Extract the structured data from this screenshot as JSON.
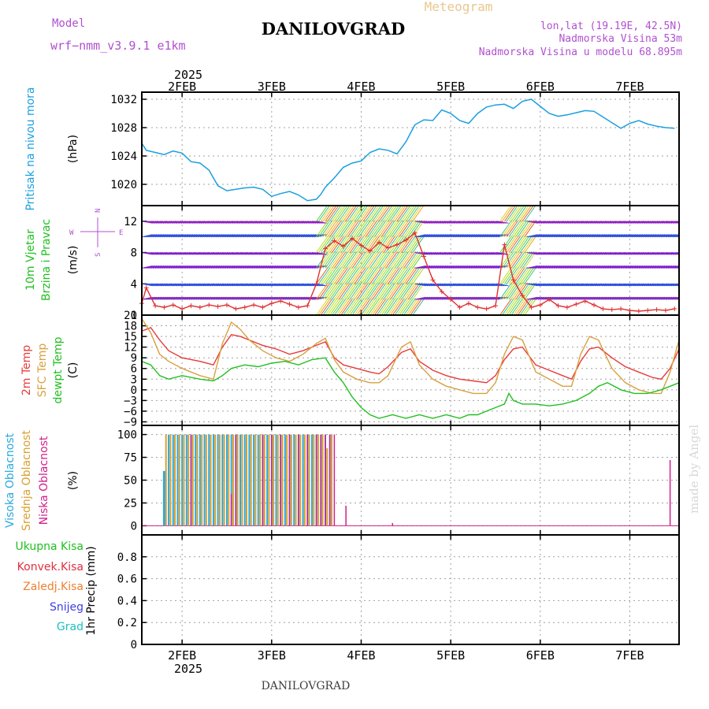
{
  "header": {
    "meteogram_label": "Meteogram",
    "model_label": "Model",
    "model_name": "wrf−nmm_v3.9.1 e1km",
    "city": "DANILOVGRAD",
    "coords": "lon,lat (19.19E, 42.5N)",
    "elevation": "Nadmorska Visina 53m",
    "model_elevation": "Nadmorska Visina u modelu 68.895m",
    "year": "2025",
    "footer_city": "DANILOVGRAD",
    "credit": "made by Angel"
  },
  "colors": {
    "pressure": "#1a9fe0",
    "wind_speed": "#e03030",
    "temp_2m": "#e83a3a",
    "temp_sfc": "#d8a040",
    "dewpoint": "#20c020",
    "cloud_high": "#2aa8e0",
    "cloud_mid": "#d8a030",
    "cloud_low": "#d0208a",
    "meta": "#b050d0",
    "frame": "#000000",
    "grid": "#a0a0a0"
  },
  "time_axis": {
    "ticks": [
      "2FEB",
      "3FEB",
      "4FEB",
      "5FEB",
      "6FEB",
      "7FEB"
    ],
    "tick_days": [
      2,
      3,
      4,
      5,
      6,
      7
    ],
    "xlim_days": [
      1.55,
      7.55
    ],
    "year_label": "2025"
  },
  "chart_data": [
    {
      "type": "line",
      "panel": "pressure",
      "ylabel_1": "Pritisak na nivou mora",
      "ylabel_2": "(hPa)",
      "ylim": [
        1017,
        1033
      ],
      "yticks": [
        1020,
        1024,
        1028,
        1032
      ],
      "series": [
        {
          "name": "Pritisak na nivou mora",
          "x": [
            1.55,
            1.6,
            1.7,
            1.8,
            1.9,
            2.0,
            2.1,
            2.2,
            2.3,
            2.4,
            2.5,
            2.6,
            2.7,
            2.8,
            2.9,
            3.0,
            3.1,
            3.2,
            3.3,
            3.4,
            3.5,
            3.55,
            3.6,
            3.7,
            3.8,
            3.9,
            4.0,
            4.1,
            4.2,
            4.3,
            4.4,
            4.5,
            4.6,
            4.7,
            4.8,
            4.9,
            5.0,
            5.1,
            5.2,
            5.3,
            5.4,
            5.5,
            5.6,
            5.7,
            5.8,
            5.9,
            6.0,
            6.1,
            6.2,
            6.3,
            6.4,
            6.5,
            6.6,
            6.7,
            6.8,
            6.9,
            7.0,
            7.1,
            7.2,
            7.3,
            7.4,
            7.5
          ],
          "values": [
            1025.8,
            1024.8,
            1024.5,
            1024.2,
            1024.7,
            1024.4,
            1023.2,
            1023.0,
            1022.0,
            1019.8,
            1019.1,
            1019.3,
            1019.5,
            1019.6,
            1019.3,
            1018.3,
            1018.7,
            1019.0,
            1018.5,
            1017.7,
            1017.9,
            1018.6,
            1019.6,
            1020.9,
            1022.4,
            1023.0,
            1023.3,
            1024.5,
            1025.0,
            1024.8,
            1024.3,
            1026.0,
            1028.4,
            1029.1,
            1029.0,
            1030.5,
            1030.0,
            1029.0,
            1028.6,
            1030.0,
            1030.9,
            1031.2,
            1031.3,
            1030.7,
            1031.7,
            1032.0,
            1031.0,
            1030.0,
            1029.6,
            1029.8,
            1030.1,
            1030.4,
            1030.3,
            1029.5,
            1028.7,
            1027.9,
            1028.6,
            1029.0,
            1028.5,
            1028.2,
            1028.0,
            1027.9
          ]
        }
      ]
    },
    {
      "type": "line",
      "panel": "wind",
      "ylabel_1": "10m Vjetar",
      "ylabel_2": "Brzina i Pravac",
      "ylabel_3": "(m/s)",
      "compass": {
        "n": "N",
        "s": "S",
        "w": "W",
        "e": "E"
      },
      "ylim": [
        0,
        14
      ],
      "yticks": [
        0,
        4,
        8,
        12
      ],
      "series": [
        {
          "name": "10m Vjetar Brzina",
          "x": [
            1.55,
            1.6,
            1.7,
            1.8,
            1.9,
            2.0,
            2.1,
            2.2,
            2.3,
            2.4,
            2.5,
            2.6,
            2.7,
            2.8,
            2.9,
            3.0,
            3.1,
            3.2,
            3.3,
            3.4,
            3.5,
            3.6,
            3.7,
            3.8,
            3.9,
            4.0,
            4.1,
            4.2,
            4.3,
            4.4,
            4.5,
            4.6,
            4.7,
            4.8,
            4.9,
            5.0,
            5.1,
            5.2,
            5.3,
            5.4,
            5.5,
            5.6,
            5.7,
            5.8,
            5.9,
            6.0,
            6.1,
            6.2,
            6.3,
            6.4,
            6.5,
            6.6,
            6.7,
            6.8,
            6.9,
            7.0,
            7.1,
            7.2,
            7.3,
            7.4,
            7.5
          ],
          "values": [
            1.5,
            3.5,
            1.2,
            1.0,
            1.3,
            0.8,
            1.2,
            1.0,
            1.3,
            1.1,
            1.3,
            0.8,
            1.0,
            1.3,
            1.0,
            1.5,
            1.8,
            1.4,
            1.0,
            1.2,
            4.0,
            8.5,
            9.5,
            8.8,
            9.8,
            8.9,
            8.2,
            9.3,
            8.6,
            9.0,
            9.6,
            10.5,
            7.5,
            4.5,
            3.0,
            2.0,
            1.0,
            1.5,
            1.0,
            0.8,
            1.2,
            9.0,
            4.5,
            2.5,
            1.0,
            1.3,
            2.0,
            1.2,
            1.0,
            1.4,
            1.8,
            1.3,
            0.8,
            0.7,
            0.8,
            0.6,
            0.5,
            0.6,
            0.7,
            0.6,
            0.8
          ]
        }
      ],
      "barbs": [
        {
          "x_from": 1.55,
          "x_to": 3.5,
          "speed": "light",
          "direction_deg": 300
        },
        {
          "x_from": 3.5,
          "x_to": 4.6,
          "speed": "strong",
          "direction_deg": 210
        },
        {
          "x_from": 4.6,
          "x_to": 5.55,
          "speed": "light",
          "direction_deg": 330
        },
        {
          "x_from": 5.55,
          "x_to": 5.85,
          "speed": "strong",
          "direction_deg": 210
        },
        {
          "x_from": 5.85,
          "x_to": 7.55,
          "speed": "light",
          "direction_deg": 300
        }
      ]
    },
    {
      "type": "line",
      "panel": "temperature",
      "ylabel_1": "2m Temp",
      "ylabel_2": "SFC Temp",
      "ylabel_3": "dewpt Temp",
      "ylabel_4": "(C)",
      "ylim": [
        -10,
        21
      ],
      "yticks": [
        -9,
        -6,
        -3,
        0,
        3,
        6,
        9,
        12,
        15,
        18,
        21
      ],
      "series": [
        {
          "name": "2m Temp",
          "x": [
            1.55,
            1.65,
            1.75,
            1.85,
            2.0,
            2.2,
            2.35,
            2.45,
            2.55,
            2.65,
            2.75,
            2.9,
            3.05,
            3.2,
            3.35,
            3.5,
            3.6,
            3.7,
            3.8,
            3.95,
            4.1,
            4.2,
            4.3,
            4.45,
            4.55,
            4.65,
            4.8,
            4.95,
            5.1,
            5.25,
            5.4,
            5.5,
            5.6,
            5.7,
            5.8,
            5.95,
            6.1,
            6.25,
            6.35,
            6.45,
            6.55,
            6.65,
            6.8,
            6.95,
            7.1,
            7.25,
            7.35,
            7.45,
            7.55
          ],
          "values": [
            16.5,
            17.5,
            14.0,
            11.0,
            9.0,
            8.0,
            7.0,
            12.0,
            15.5,
            15.0,
            14.0,
            12.5,
            11.5,
            10.0,
            11.0,
            12.5,
            13.5,
            9.0,
            7.0,
            6.0,
            5.0,
            4.5,
            6.5,
            10.5,
            11.5,
            8.0,
            5.5,
            4.0,
            3.0,
            2.5,
            2.0,
            4.0,
            8.5,
            11.5,
            12.0,
            7.0,
            5.5,
            4.0,
            3.0,
            8.0,
            11.5,
            12.0,
            9.0,
            6.5,
            5.0,
            3.5,
            3.0,
            6.0,
            11.5
          ]
        },
        {
          "name": "SFC Temp",
          "x": [
            1.55,
            1.65,
            1.75,
            1.85,
            2.0,
            2.2,
            2.35,
            2.45,
            2.55,
            2.65,
            2.75,
            2.9,
            3.05,
            3.2,
            3.35,
            3.5,
            3.6,
            3.7,
            3.8,
            3.95,
            4.1,
            4.2,
            4.3,
            4.45,
            4.55,
            4.65,
            4.8,
            4.95,
            5.1,
            5.25,
            5.4,
            5.5,
            5.6,
            5.7,
            5.8,
            5.95,
            6.1,
            6.25,
            6.35,
            6.45,
            6.55,
            6.65,
            6.8,
            6.95,
            7.1,
            7.25,
            7.35,
            7.45,
            7.55
          ],
          "values": [
            20.0,
            16.0,
            10.0,
            8.0,
            6.0,
            4.0,
            3.0,
            13.0,
            19.0,
            17.0,
            14.0,
            11.0,
            9.0,
            8.0,
            10.0,
            13.0,
            14.5,
            8.5,
            5.0,
            3.0,
            2.0,
            2.0,
            4.0,
            12.0,
            13.5,
            7.0,
            3.0,
            1.0,
            0.0,
            -1.0,
            -1.0,
            2.0,
            10.0,
            15.0,
            14.0,
            5.0,
            3.0,
            1.0,
            1.0,
            10.0,
            15.0,
            14.0,
            6.0,
            2.0,
            0.0,
            -1.0,
            -1.0,
            5.0,
            14.0
          ]
        },
        {
          "name": "dewpt Temp",
          "x": [
            1.55,
            1.65,
            1.75,
            1.85,
            2.0,
            2.2,
            2.35,
            2.45,
            2.55,
            2.7,
            2.85,
            3.0,
            3.15,
            3.3,
            3.45,
            3.6,
            3.7,
            3.8,
            3.9,
            4.0,
            4.1,
            4.2,
            4.35,
            4.5,
            4.65,
            4.8,
            4.95,
            5.1,
            5.2,
            5.3,
            5.4,
            5.5,
            5.6,
            5.65,
            5.7,
            5.8,
            5.95,
            6.1,
            6.25,
            6.4,
            6.55,
            6.65,
            6.75,
            6.9,
            7.05,
            7.2,
            7.35,
            7.45,
            7.55
          ],
          "values": [
            8.0,
            7.0,
            4.0,
            3.0,
            4.0,
            3.0,
            2.5,
            4.0,
            6.0,
            7.0,
            6.5,
            7.5,
            8.0,
            7.0,
            8.5,
            9.0,
            5.0,
            2.0,
            -2.0,
            -5.0,
            -7.0,
            -8.0,
            -7.0,
            -8.0,
            -7.0,
            -8.0,
            -7.0,
            -8.0,
            -7.0,
            -7.0,
            -6.0,
            -5.0,
            -4.0,
            -1.0,
            -3.0,
            -4.0,
            -4.0,
            -4.5,
            -4.0,
            -3.0,
            -1.0,
            1.0,
            2.0,
            0.0,
            -1.0,
            -1.0,
            0.0,
            1.0,
            2.0
          ]
        }
      ]
    },
    {
      "type": "bar",
      "panel": "clouds",
      "ylabel_1": "Visoka Oblacnost",
      "ylabel_2": "Srednja Oblacnost",
      "ylabel_3": "Niska Oblacnost",
      "ylabel_4": "(%)",
      "ylim": [
        0,
        100
      ],
      "yticks": [
        0,
        25,
        50,
        75,
        100
      ],
      "series": [
        {
          "name": "Visoka Oblacnost",
          "x": [
            1.8,
            1.85,
            1.9,
            1.95,
            2.0,
            2.05,
            2.1,
            2.15,
            2.2,
            2.25,
            2.3,
            2.35,
            2.4,
            2.45,
            2.5,
            2.55,
            2.6,
            2.65,
            2.7,
            2.75,
            2.8,
            2.85,
            2.9,
            2.95,
            3.0,
            3.05,
            3.1,
            3.15,
            3.2,
            3.25,
            3.3,
            3.35,
            3.4,
            3.45,
            3.5,
            3.55,
            3.6,
            3.65
          ],
          "values": [
            60,
            100,
            100,
            100,
            100,
            100,
            100,
            100,
            100,
            100,
            100,
            100,
            100,
            100,
            100,
            100,
            100,
            100,
            100,
            100,
            100,
            100,
            100,
            100,
            100,
            100,
            100,
            100,
            100,
            100,
            100,
            100,
            100,
            100,
            100,
            100,
            100,
            100
          ]
        },
        {
          "name": "Srednja Oblacnost",
          "x": [
            1.82,
            1.87,
            1.92,
            1.97,
            2.02,
            2.07,
            2.12,
            2.17,
            2.22,
            2.27,
            2.32,
            2.37,
            2.42,
            2.47,
            2.52,
            2.57,
            2.62,
            2.67,
            2.72,
            2.77,
            2.82,
            2.87,
            2.92,
            2.97,
            3.02,
            3.07,
            3.12,
            3.17,
            3.22,
            3.27,
            3.32,
            3.37,
            3.42,
            3.47,
            3.52,
            3.57,
            3.62,
            3.67
          ],
          "values": [
            100,
            100,
            100,
            100,
            100,
            100,
            100,
            100,
            100,
            100,
            100,
            100,
            100,
            100,
            100,
            100,
            100,
            100,
            100,
            100,
            100,
            100,
            100,
            100,
            100,
            100,
            100,
            100,
            100,
            100,
            100,
            100,
            100,
            100,
            100,
            100,
            85,
            100
          ]
        },
        {
          "name": "Niska Oblacnost",
          "x": [
            2.1,
            2.55,
            2.6,
            2.9,
            3.0,
            3.1,
            3.2,
            3.3,
            3.4,
            3.5,
            3.55,
            3.6,
            3.65,
            3.7,
            3.83,
            4.35,
            7.45
          ],
          "values": [
            100,
            35,
            100,
            100,
            100,
            100,
            100,
            100,
            100,
            100,
            100,
            100,
            100,
            100,
            22,
            3,
            72
          ]
        }
      ]
    },
    {
      "type": "bar",
      "panel": "precip",
      "ylabel_1": "1hr Precip (mm)",
      "legend": [
        "Ukupna Kisa",
        "Konvek.Kisa",
        "Zaledj.Kisa",
        "Snijeg",
        "Grad"
      ],
      "legend_colors": [
        "#20c020",
        "#e03040",
        "#f08030",
        "#4040e0",
        "#20c0c0"
      ],
      "ylim": [
        0,
        1
      ],
      "yticks": [
        0,
        0.2,
        0.4,
        0.6,
        0.8
      ],
      "ytick_labels": [
        "0",
        "0.2",
        "0.4",
        "0.6",
        "0.8"
      ],
      "series": []
    }
  ]
}
